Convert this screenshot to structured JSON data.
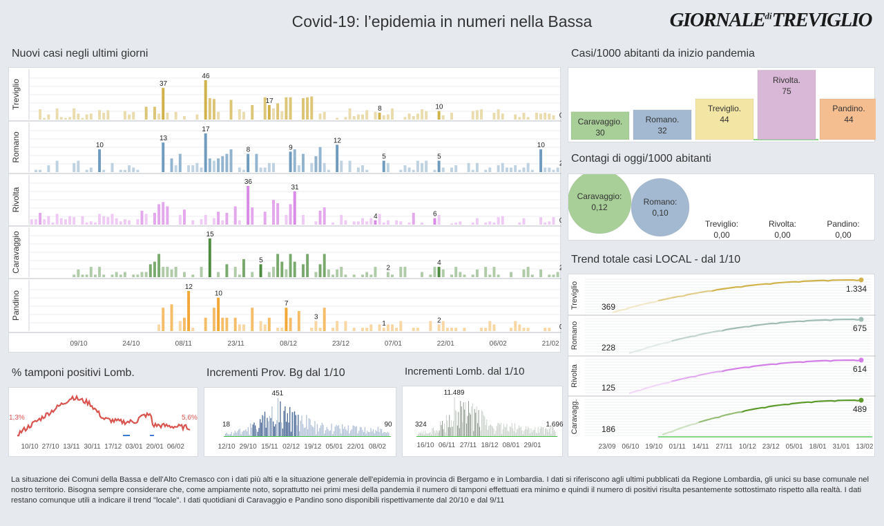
{
  "header": {
    "title": "Covid-19: l’epidemia  in numeri nella Bassa",
    "logo_main": "GIORNALE",
    "logo_di": "di",
    "logo_end": "TREVIGLIO"
  },
  "sections": {
    "daily": "Nuovi casi negli ultimi   giorni",
    "per1000": "Casi/1000 abitanti da inizio pandemia",
    "today": "Contagi di oggi/1000 abitanti",
    "trend": "Trend totale casi  LOCAL - dal 1/10",
    "positive": "% tamponi positivi Lomb.",
    "prov": "Incrementi Prov. Bg dal 1/10",
    "lomb": "Incrementi Lomb. dal 1/10"
  },
  "colors": {
    "Treviglio": "#d1b24a",
    "Romano": "#6f9bbf",
    "Rivolta": "#d98ae6",
    "Caravaggio": "#4d8c3e",
    "Pandino": "#f2a736"
  },
  "chart_data": [
    {
      "id": "daily",
      "type": "bar",
      "title": "Nuovi casi negli ultimi   giorni",
      "x_ticks": [
        "09/10",
        "24/10",
        "08/11",
        "23/11",
        "08/12",
        "23/12",
        "07/01",
        "22/01",
        "06/02",
        "21/02"
      ],
      "series": [
        {
          "name": "Treviglio",
          "max": 46,
          "annotations": [
            {
              "i": 31,
              "v": "37"
            },
            {
              "i": 41,
              "v": "46"
            },
            {
              "i": 56,
              "v": "17"
            },
            {
              "i": 82,
              "v": "8"
            },
            {
              "i": 96,
              "v": "10"
            },
            {
              "i": 124,
              "v": "0"
            }
          ]
        },
        {
          "name": "Romano",
          "max": 17,
          "annotations": [
            {
              "i": 16,
              "v": "10"
            },
            {
              "i": 31,
              "v": "13"
            },
            {
              "i": 41,
              "v": "17"
            },
            {
              "i": 51,
              "v": "8"
            },
            {
              "i": 61,
              "v": "9"
            },
            {
              "i": 72,
              "v": "12"
            },
            {
              "i": 83,
              "v": "5"
            },
            {
              "i": 96,
              "v": "5"
            },
            {
              "i": 120,
              "v": "10"
            },
            {
              "i": 124,
              "v": "2"
            }
          ]
        },
        {
          "name": "Rivolta",
          "max": 36,
          "annotations": [
            {
              "i": 51,
              "v": "36"
            },
            {
              "i": 62,
              "v": "31"
            },
            {
              "i": 81,
              "v": "4"
            },
            {
              "i": 95,
              "v": "6"
            },
            {
              "i": 124,
              "v": "0"
            }
          ]
        },
        {
          "name": "Caravaggio",
          "max": 15,
          "annotations": [
            {
              "i": 42,
              "v": "15"
            },
            {
              "i": 54,
              "v": "5"
            },
            {
              "i": 84,
              "v": "2"
            },
            {
              "i": 96,
              "v": "4"
            },
            {
              "i": 124,
              "v": "2"
            }
          ]
        },
        {
          "name": "Pandino",
          "max": 12,
          "annotations": [
            {
              "i": 37,
              "v": "12"
            },
            {
              "i": 44,
              "v": "10"
            },
            {
              "i": 60,
              "v": "7"
            },
            {
              "i": 67,
              "v": "3"
            },
            {
              "i": 83,
              "v": "1"
            },
            {
              "i": 96,
              "v": "2"
            },
            {
              "i": 124,
              "v": "0"
            }
          ]
        }
      ]
    },
    {
      "id": "per1000",
      "type": "bar",
      "title": "Casi/1000 abitanti da inizio pandemia",
      "categories": [
        "Caravaggio.",
        "Romano.",
        "Treviglio.",
        "Rivolta.",
        "Pandino."
      ],
      "values": [
        30,
        32,
        44,
        75,
        44
      ],
      "value_labels": [
        "30",
        "32",
        "44",
        "75",
        "44"
      ],
      "fills": [
        "#a8cf98",
        "#a3b9d1",
        "#f3e6a5",
        "#d8b8d6",
        "#f5be91"
      ]
    },
    {
      "id": "today",
      "type": "scatter",
      "title": "Contagi di oggi/1000 abitanti",
      "categories": [
        "Caravaggio:",
        "Romano:",
        "Treviglio:",
        "Rivolta:",
        "Pandino:"
      ],
      "values": [
        0.12,
        0.1,
        0.0,
        0.0,
        0.0
      ],
      "value_labels": [
        "0,12",
        "0,10",
        "0,00",
        "0,00",
        "0,00"
      ],
      "fills": [
        "#a8cf98",
        "#a3b9d1",
        "#f3e6a5",
        "#d8b8d6",
        "#f5be91"
      ]
    },
    {
      "id": "trend",
      "type": "line",
      "title": "Trend totale casi  LOCAL - dal 1/10",
      "x_ticks": [
        "23/09",
        "06/10",
        "19/10",
        "01/11",
        "14/11",
        "27/11",
        "10/12",
        "23/12",
        "05/01",
        "18/01",
        "31/01",
        "13/02"
      ],
      "series": [
        {
          "name": "Treviglio",
          "start": 369,
          "end": 1334,
          "start_label": "369",
          "end_label": "1.334",
          "color": "#d1b24a"
        },
        {
          "name": "Romano",
          "start": 228,
          "end": 675,
          "start_label": "228",
          "end_label": "675",
          "color": "#9fbcb4"
        },
        {
          "name": "Rivolta",
          "start": 125,
          "end": 614,
          "start_label": "125",
          "end_label": "614",
          "color": "#d47ee8"
        },
        {
          "name": "Caravagg.",
          "start": 186,
          "end": 489,
          "start_label": "186",
          "end_label": "489",
          "color": "#5c9a2c"
        }
      ]
    },
    {
      "id": "positive",
      "type": "line",
      "title": "% tamponi positivi Lomb.",
      "x_ticks": [
        "10/10",
        "27/10",
        "13/11",
        "30/11",
        "17/12",
        "03/01",
        "20/01",
        "06/02"
      ],
      "start_label": "1,3%",
      "end_label": "5,6%",
      "color": "#d9534f"
    },
    {
      "id": "prov",
      "type": "bar",
      "title": "Incrementi Prov. Bg dal 1/10",
      "x_ticks": [
        "12/10",
        "29/10",
        "15/11",
        "02/12",
        "19/12",
        "05/01",
        "22/01",
        "08/02"
      ],
      "annotations": [
        {
          "i": 0,
          "v": "18"
        },
        {
          "i": 44,
          "v": "451"
        },
        {
          "i": 137,
          "v": "90"
        }
      ],
      "color": "#4a6fa0"
    },
    {
      "id": "lomb",
      "type": "bar",
      "title": "Incrementi Lomb. dal 1/10",
      "x_ticks": [
        "16/10",
        "06/11",
        "27/11",
        "18/12",
        "08/01",
        "29/01"
      ],
      "annotations": [
        {
          "i": 0,
          "v": "324"
        },
        {
          "i": 36,
          "v": "11.489"
        },
        {
          "i": 136,
          "v": "1.696"
        }
      ],
      "color": "#9aa39a"
    }
  ],
  "footer": {
    "text": "La situazione dei Comuni della Bassa e dell'Alto Cremasco con i dati più alti e la situazione generale dell'epidemia in provincia di Bergamo e in Lombardia.  I dati si riferiscono agli ultimi pubblicati da Regione Lombardia, gli unici su base comunale nel  nostro territorio.  Bisogna sempre considerare che, come ampiamente noto, soprattutto nei primi mesi della pandemia il numero di tamponi effettuati era minimo e quindi il numero di positivi risulta pesantemente sottostimato rispetto alla realtà. I dati restano comunque utili a indicare il trend \"locale\".  I dati quotidiani di Caravaggio e Pandino sono disponibili rispettivamente dal 20/10 e dal 9/11"
  }
}
